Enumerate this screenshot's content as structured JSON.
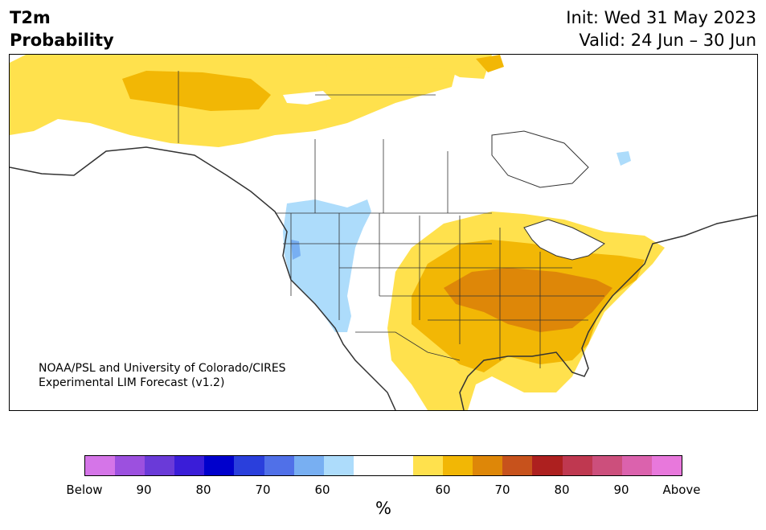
{
  "header": {
    "title_line1": "T2m",
    "title_line2": "Probability",
    "init": "Init: Wed 31 May 2023",
    "valid": "Valid: 24 Jun – 30 Jun"
  },
  "credit": {
    "line1": "NOAA/PSL and University of Colorado/CIRES",
    "line2": "Experimental LIM Forecast (v1.2)"
  },
  "colorbar": {
    "unit": "%",
    "colors": [
      "#d575e8",
      "#9c50df",
      "#6a3ad8",
      "#3a1dd8",
      "#0000cc",
      "#2a3fdc",
      "#5070e8",
      "#78aff2",
      "#addcfb",
      "#ffffff",
      "#ffffff",
      "#ffe14d",
      "#f2b705",
      "#de8708",
      "#c7521c",
      "#ad201f",
      "#bf3850",
      "#cc4f7c",
      "#db62ad",
      "#e878dc"
    ],
    "tick_labels": [
      "Below",
      "90",
      "80",
      "70",
      "60",
      "60",
      "70",
      "80",
      "90",
      "Above"
    ]
  },
  "map": {
    "below_colors": {
      "light": "#addcfb",
      "medium": "#78aff2"
    },
    "above_colors": {
      "c60": "#ffe14d",
      "c65": "#f2b705",
      "c70": "#de8708"
    },
    "land": "#ffffff",
    "border_color": "#333333"
  }
}
